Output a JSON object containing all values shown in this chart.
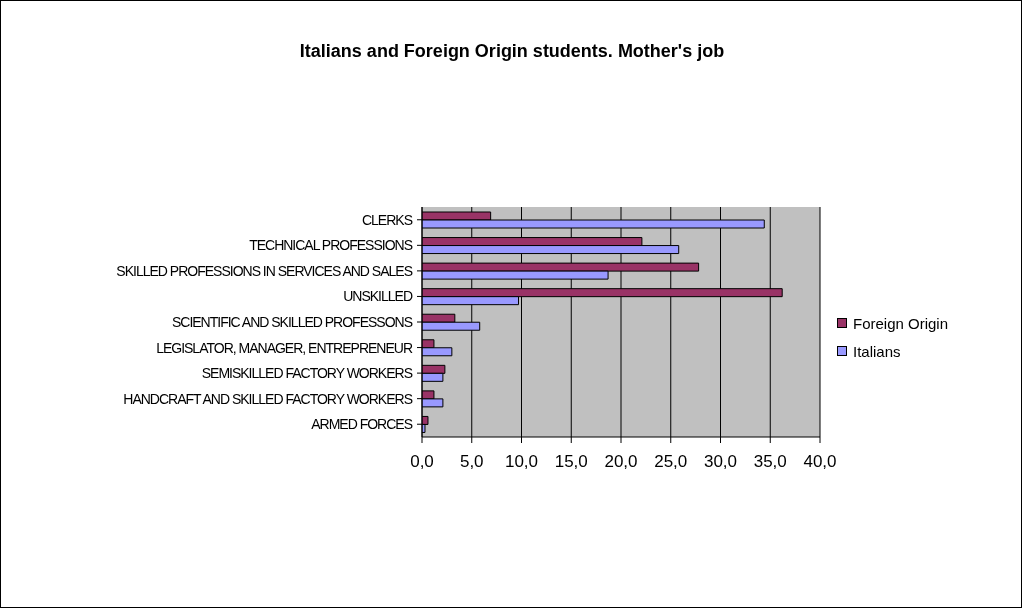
{
  "chart_data": {
    "type": "bar",
    "orientation": "horizontal",
    "title": "Italians and Foreign Origin students. Mother's job",
    "categories": [
      "CLERKS",
      "TECHNICAL PROFESSIONS",
      "SKILLED PROFESSIONS IN SERVICES AND SALES",
      "UNSKILLED",
      "SCIENTIFIC AND SKILLED PROFESSONS",
      "LEGISLATOR, MANAGER,  ENTREPRENEUR",
      "SEMISKILLED FACTORY WORKERS",
      "HANDCRAFT AND SKILLED FACTORY WORKERS",
      "ARMED FORCES"
    ],
    "series": [
      {
        "name": "Foreign Origin",
        "color": "#993366",
        "values": [
          6.9,
          22.1,
          27.8,
          36.2,
          3.3,
          1.2,
          2.3,
          1.2,
          0.6
        ]
      },
      {
        "name": "Italians",
        "color": "#9999ff",
        "values": [
          34.4,
          25.8,
          18.7,
          9.7,
          5.8,
          3.0,
          2.1,
          2.1,
          0.3
        ]
      }
    ],
    "xlim": [
      0,
      40
    ],
    "xticks": [
      {
        "value": 0,
        "label": "0,0"
      },
      {
        "value": 5,
        "label": "5,0"
      },
      {
        "value": 10,
        "label": "10,0"
      },
      {
        "value": 15,
        "label": "15,0"
      },
      {
        "value": 20,
        "label": "20,0"
      },
      {
        "value": 25,
        "label": "25,0"
      },
      {
        "value": 30,
        "label": "30,0"
      },
      {
        "value": 35,
        "label": "35,0"
      },
      {
        "value": 40,
        "label": "40,0"
      }
    ],
    "grid": "x",
    "legend": "right"
  }
}
